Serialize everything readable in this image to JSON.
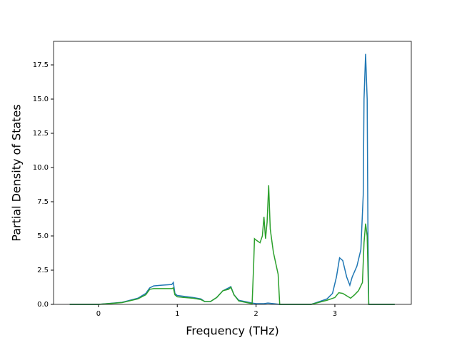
{
  "chart_data": {
    "type": "line",
    "xlabel": "Frequency (THz)",
    "ylabel": "Partial Density of States",
    "xlim": [
      -0.57,
      3.97
    ],
    "xticks": [
      0,
      1,
      2,
      3
    ],
    "ylim": [
      0,
      19.22
    ],
    "yticks": [
      {
        "value": 0,
        "label": "0.0"
      },
      2.5,
      {
        "value": 5,
        "label": "5.0"
      },
      7.5,
      {
        "value": 10,
        "label": "10.0"
      },
      12.5,
      {
        "value": 15,
        "label": "15.0"
      },
      17.5
    ],
    "series": [
      {
        "color": "#1f77b4",
        "x": [
          -0.365,
          0,
          0.3,
          0.5,
          0.6,
          0.65,
          0.7,
          0.8,
          0.93,
          0.95,
          0.97,
          1.0,
          1.2,
          1.3,
          1.35,
          1.42,
          1.5,
          1.58,
          1.65,
          1.68,
          1.72,
          1.78,
          1.95,
          2.0,
          2.1,
          2.15,
          2.3,
          2.7,
          2.8,
          2.9,
          2.97,
          3.02,
          3.06,
          3.1,
          3.15,
          3.19,
          3.22,
          3.28,
          3.33,
          3.36,
          3.37,
          3.39,
          3.41,
          3.42,
          3.43,
          3.76
        ],
        "values": [
          0,
          0,
          0.15,
          0.45,
          0.8,
          1.2,
          1.35,
          1.4,
          1.45,
          1.6,
          0.8,
          0.65,
          0.5,
          0.4,
          0.2,
          0.2,
          0.5,
          1.0,
          1.2,
          1.3,
          0.7,
          0.3,
          0.1,
          0.05,
          0.05,
          0.1,
          0,
          0,
          0.2,
          0.4,
          0.8,
          2.0,
          3.4,
          3.2,
          2.0,
          1.4,
          2.0,
          2.8,
          4.0,
          8,
          15,
          18.3,
          15,
          5,
          0,
          0
        ]
      },
      {
        "color": "#2ca02c",
        "x": [
          -0.365,
          0,
          0.3,
          0.5,
          0.6,
          0.65,
          0.7,
          0.8,
          0.93,
          0.95,
          0.97,
          1.0,
          1.2,
          1.3,
          1.35,
          1.42,
          1.5,
          1.58,
          1.65,
          1.68,
          1.72,
          1.78,
          1.95,
          1.97,
          1.98,
          2.0,
          2.05,
          2.08,
          2.1,
          2.12,
          2.14,
          2.16,
          2.18,
          2.22,
          2.28,
          2.3,
          2.7,
          2.9,
          3.0,
          3.05,
          3.1,
          3.2,
          3.25,
          3.3,
          3.35,
          3.37,
          3.39,
          3.41,
          3.43,
          3.76
        ],
        "values": [
          0,
          0,
          0.13,
          0.4,
          0.7,
          1.1,
          1.15,
          1.15,
          1.15,
          1.2,
          0.7,
          0.55,
          0.45,
          0.35,
          0.2,
          0.2,
          0.5,
          1.0,
          1.1,
          1.25,
          0.7,
          0.25,
          0.05,
          3.0,
          4.8,
          4.7,
          4.5,
          5.0,
          6.4,
          4.8,
          6.0,
          8.7,
          5.5,
          3.8,
          2.2,
          0,
          0,
          0.3,
          0.5,
          0.85,
          0.8,
          0.45,
          0.7,
          1.0,
          1.6,
          4.5,
          5.9,
          5.0,
          0,
          0
        ]
      }
    ]
  }
}
